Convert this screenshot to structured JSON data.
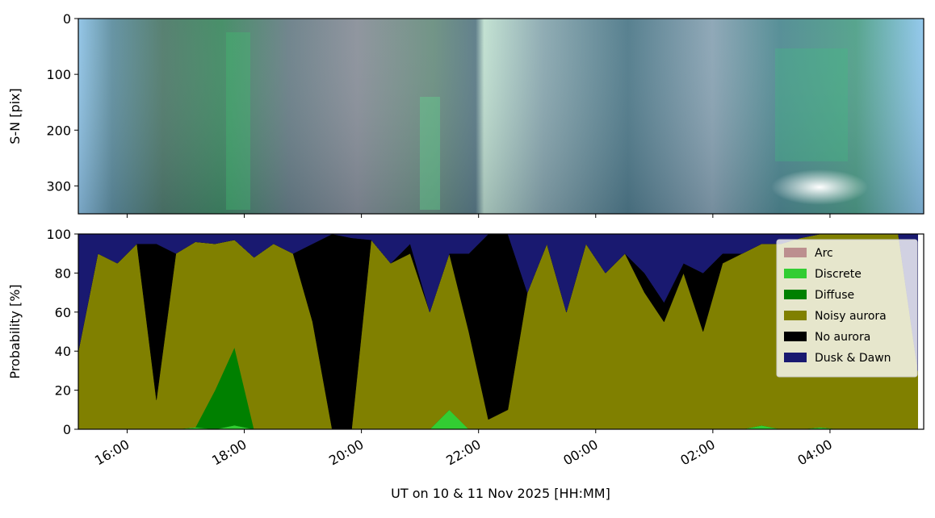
{
  "chart_data": [
    {
      "type": "image",
      "ylabel": "S-N [pix]",
      "ylim": [
        350,
        0
      ],
      "yticks": [
        0,
        100,
        200,
        300
      ]
    },
    {
      "type": "stacked-area",
      "ylabel": "Probability [%]",
      "xlabel": "UT on 10 & 11 Nov 2025 [HH:MM]",
      "x": [
        "15:10",
        "15:30",
        "15:50",
        "16:10",
        "16:30",
        "16:50",
        "17:10",
        "17:30",
        "17:50",
        "18:10",
        "18:30",
        "18:50",
        "19:10",
        "19:30",
        "19:50",
        "20:10",
        "20:30",
        "20:50",
        "21:10",
        "21:30",
        "21:50",
        "22:10",
        "22:30",
        "22:50",
        "23:10",
        "23:30",
        "23:50",
        "00:10",
        "00:30",
        "00:50",
        "01:10",
        "01:30",
        "01:50",
        "02:10",
        "02:30",
        "02:50",
        "03:10",
        "03:30",
        "03:50",
        "04:10",
        "04:30",
        "04:50",
        "05:10",
        "05:30"
      ],
      "xlim": [
        "15:10",
        "05:36"
      ],
      "xticks": [
        "16:00",
        "18:00",
        "20:00",
        "22:00",
        "00:00",
        "02:00",
        "04:00"
      ],
      "ylim": [
        0,
        100
      ],
      "yticks": [
        0,
        20,
        40,
        60,
        80,
        100
      ],
      "legend": "upper right",
      "series": [
        {
          "name": "Arc",
          "color": "#bc8f8f",
          "values": [
            0,
            0,
            0,
            0,
            0,
            0,
            0,
            0,
            0,
            0,
            0,
            0,
            0,
            0,
            0,
            0,
            0,
            0,
            0,
            0,
            0,
            0,
            0,
            0,
            0,
            0,
            0,
            0,
            0,
            0,
            0,
            0,
            0,
            0,
            0,
            0,
            0,
            0,
            0,
            0,
            0,
            0,
            0,
            0
          ]
        },
        {
          "name": "Discrete",
          "color": "#32cd32",
          "values": [
            0,
            0,
            0,
            0,
            0,
            0,
            1,
            0,
            2,
            0,
            0,
            0,
            0,
            0,
            0,
            0,
            0,
            0,
            0,
            10,
            0,
            0,
            0,
            0,
            0,
            0,
            0,
            0,
            0,
            0,
            0,
            0,
            0,
            0,
            0,
            2,
            0,
            0,
            1,
            0,
            0,
            0,
            0,
            0
          ]
        },
        {
          "name": "Diffuse",
          "color": "#008000",
          "values": [
            0,
            0,
            0,
            0,
            0,
            0,
            0,
            20,
            40,
            0,
            0,
            0,
            0,
            0,
            0,
            0,
            0,
            0,
            0,
            0,
            0,
            0,
            0,
            0,
            0,
            0,
            0,
            0,
            0,
            0,
            0,
            0,
            0,
            0,
            0,
            0,
            0,
            0,
            0,
            0,
            0,
            0,
            0,
            0
          ]
        },
        {
          "name": "Noisy aurora",
          "color": "#808000",
          "values": [
            40,
            90,
            85,
            95,
            15,
            90,
            95,
            75,
            55,
            88,
            95,
            90,
            55,
            0,
            0,
            97,
            85,
            90,
            60,
            80,
            50,
            5,
            10,
            70,
            95,
            60,
            95,
            80,
            90,
            70,
            55,
            80,
            50,
            85,
            90,
            93,
            95,
            98,
            99,
            100,
            100,
            100,
            100,
            30
          ]
        },
        {
          "name": "No aurora",
          "color": "#000000",
          "values": [
            0,
            0,
            0,
            0,
            80,
            0,
            0,
            0,
            0,
            0,
            0,
            0,
            40,
            100,
            98,
            0,
            0,
            5,
            0,
            0,
            40,
            95,
            90,
            0,
            0,
            0,
            0,
            0,
            0,
            10,
            10,
            5,
            30,
            5,
            0,
            0,
            0,
            0,
            0,
            0,
            0,
            0,
            0,
            0
          ]
        },
        {
          "name": "Dusk & Dawn",
          "color": "#191970",
          "values": [
            60,
            10,
            15,
            5,
            5,
            10,
            4,
            5,
            3,
            12,
            5,
            10,
            5,
            0,
            2,
            3,
            15,
            5,
            40,
            10,
            10,
            0,
            0,
            30,
            5,
            40,
            5,
            20,
            10,
            20,
            35,
            15,
            20,
            10,
            10,
            5,
            5,
            2,
            0,
            0,
            0,
            0,
            0,
            70
          ]
        }
      ]
    }
  ]
}
